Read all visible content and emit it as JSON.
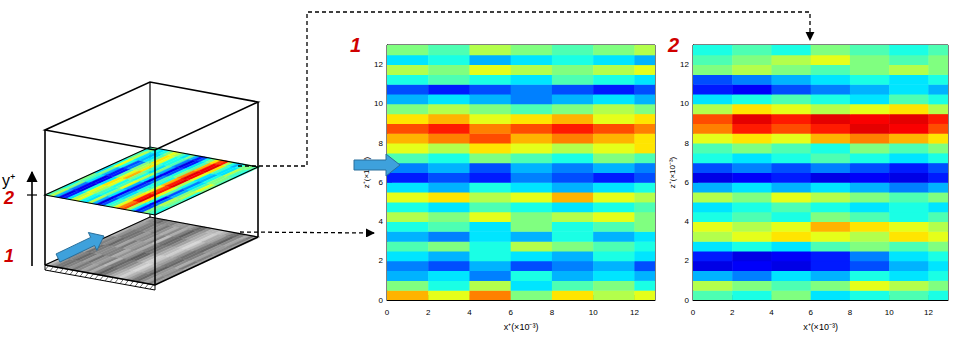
{
  "schematic": {
    "axis_label": "y⁺",
    "level_labels": [
      "1",
      "2"
    ]
  },
  "chart_data": [
    {
      "type": "heatmap",
      "panel_label": "1",
      "xlabel": "x⁺(×10⁻³)",
      "ylabel": "z⁺(×10⁻³)",
      "xlim": [
        0,
        13
      ],
      "ylim": [
        0,
        13
      ],
      "xticks": [
        0,
        2,
        4,
        6,
        8,
        10,
        12
      ],
      "yticks": [
        0,
        2,
        4,
        6,
        8,
        10,
        12
      ],
      "color_range": [
        0,
        1
      ],
      "x_edges": [
        0,
        2,
        4,
        6,
        8,
        10,
        12,
        13
      ],
      "y_edges": [
        0,
        0.5,
        1,
        1.5,
        2,
        2.5,
        3,
        3.5,
        4,
        4.5,
        5,
        5.5,
        6,
        6.5,
        7,
        7.5,
        8,
        8.5,
        9,
        9.5,
        10,
        10.5,
        11,
        11.5,
        12,
        12.5,
        13
      ],
      "cells": [
        [
          0.7,
          0.6,
          0.75,
          0.5,
          0.65,
          0.55,
          0.6
        ],
        [
          0.5,
          0.4,
          0.55,
          0.35,
          0.45,
          0.5,
          0.4
        ],
        [
          0.3,
          0.35,
          0.25,
          0.4,
          0.3,
          0.35,
          0.3
        ],
        [
          0.25,
          0.2,
          0.3,
          0.2,
          0.25,
          0.3,
          0.2
        ],
        [
          0.35,
          0.3,
          0.4,
          0.35,
          0.3,
          0.4,
          0.35
        ],
        [
          0.45,
          0.5,
          0.4,
          0.55,
          0.5,
          0.45,
          0.4
        ],
        [
          0.3,
          0.25,
          0.35,
          0.3,
          0.4,
          0.3,
          0.35
        ],
        [
          0.4,
          0.45,
          0.35,
          0.5,
          0.4,
          0.45,
          0.5
        ],
        [
          0.55,
          0.5,
          0.6,
          0.5,
          0.55,
          0.6,
          0.5
        ],
        [
          0.4,
          0.35,
          0.45,
          0.4,
          0.35,
          0.4,
          0.45
        ],
        [
          0.6,
          0.65,
          0.55,
          0.6,
          0.7,
          0.6,
          0.55
        ],
        [
          0.35,
          0.3,
          0.4,
          0.35,
          0.3,
          0.35,
          0.4
        ],
        [
          0.15,
          0.2,
          0.15,
          0.25,
          0.2,
          0.15,
          0.2
        ],
        [
          0.25,
          0.3,
          0.2,
          0.3,
          0.25,
          0.3,
          0.25
        ],
        [
          0.45,
          0.4,
          0.5,
          0.45,
          0.4,
          0.5,
          0.45
        ],
        [
          0.6,
          0.55,
          0.65,
          0.6,
          0.55,
          0.6,
          0.65
        ],
        [
          0.7,
          0.75,
          0.8,
          0.7,
          0.75,
          0.7,
          0.65
        ],
        [
          0.8,
          0.85,
          0.75,
          0.8,
          0.85,
          0.8,
          0.75
        ],
        [
          0.65,
          0.7,
          0.6,
          0.65,
          0.7,
          0.6,
          0.65
        ],
        [
          0.5,
          0.55,
          0.5,
          0.45,
          0.5,
          0.55,
          0.5
        ],
        [
          0.3,
          0.35,
          0.3,
          0.25,
          0.3,
          0.35,
          0.3
        ],
        [
          0.2,
          0.15,
          0.2,
          0.25,
          0.2,
          0.15,
          0.2
        ],
        [
          0.4,
          0.45,
          0.4,
          0.35,
          0.45,
          0.4,
          0.35
        ],
        [
          0.55,
          0.5,
          0.6,
          0.55,
          0.5,
          0.55,
          0.6
        ],
        [
          0.35,
          0.4,
          0.3,
          0.35,
          0.4,
          0.35,
          0.3
        ],
        [
          0.5,
          0.45,
          0.55,
          0.5,
          0.45,
          0.5,
          0.55
        ]
      ]
    },
    {
      "type": "heatmap",
      "panel_label": "2",
      "xlabel": "x⁺(×10⁻³)",
      "ylabel": "z⁺(×10⁻³)",
      "xlim": [
        0,
        13
      ],
      "ylim": [
        0,
        13
      ],
      "xticks": [
        0,
        2,
        4,
        6,
        8,
        10,
        12
      ],
      "yticks": [
        0,
        2,
        4,
        6,
        8,
        10,
        12
      ],
      "color_range": [
        0,
        1
      ],
      "x_edges": [
        0,
        2,
        4,
        6,
        8,
        10,
        12,
        13
      ],
      "y_edges": [
        0,
        0.5,
        1,
        1.5,
        2,
        2.5,
        3,
        3.5,
        4,
        4.5,
        5,
        5.5,
        6,
        6.5,
        7,
        7.5,
        8,
        8.5,
        9,
        9.5,
        10,
        10.5,
        11,
        11.5,
        12,
        12.5,
        13
      ],
      "cells": [
        [
          0.45,
          0.4,
          0.5,
          0.35,
          0.4,
          0.45,
          0.4
        ],
        [
          0.55,
          0.5,
          0.45,
          0.5,
          0.6,
          0.55,
          0.5
        ],
        [
          0.3,
          0.25,
          0.35,
          0.3,
          0.4,
          0.35,
          0.4
        ],
        [
          0.1,
          0.12,
          0.1,
          0.15,
          0.2,
          0.3,
          0.35
        ],
        [
          0.15,
          0.1,
          0.12,
          0.15,
          0.25,
          0.35,
          0.4
        ],
        [
          0.35,
          0.4,
          0.35,
          0.45,
          0.5,
          0.45,
          0.5
        ],
        [
          0.55,
          0.6,
          0.65,
          0.6,
          0.55,
          0.65,
          0.6
        ],
        [
          0.6,
          0.55,
          0.6,
          0.7,
          0.65,
          0.6,
          0.55
        ],
        [
          0.4,
          0.45,
          0.4,
          0.5,
          0.45,
          0.4,
          0.45
        ],
        [
          0.35,
          0.4,
          0.45,
          0.4,
          0.35,
          0.4,
          0.35
        ],
        [
          0.55,
          0.5,
          0.6,
          0.55,
          0.5,
          0.45,
          0.5
        ],
        [
          0.3,
          0.35,
          0.3,
          0.35,
          0.3,
          0.25,
          0.3
        ],
        [
          0.1,
          0.12,
          0.15,
          0.1,
          0.12,
          0.1,
          0.15
        ],
        [
          0.2,
          0.25,
          0.2,
          0.25,
          0.2,
          0.15,
          0.2
        ],
        [
          0.4,
          0.35,
          0.4,
          0.45,
          0.4,
          0.35,
          0.4
        ],
        [
          0.45,
          0.5,
          0.45,
          0.4,
          0.5,
          0.45,
          0.5
        ],
        [
          0.6,
          0.65,
          0.6,
          0.7,
          0.75,
          0.7,
          0.65
        ],
        [
          0.75,
          0.85,
          0.8,
          0.85,
          0.9,
          0.88,
          0.8
        ],
        [
          0.8,
          0.9,
          0.85,
          0.9,
          0.88,
          0.9,
          0.85
        ],
        [
          0.55,
          0.65,
          0.6,
          0.55,
          0.6,
          0.65,
          0.55
        ],
        [
          0.35,
          0.4,
          0.45,
          0.4,
          0.35,
          0.45,
          0.4
        ],
        [
          0.15,
          0.12,
          0.2,
          0.25,
          0.3,
          0.35,
          0.3
        ],
        [
          0.2,
          0.25,
          0.3,
          0.35,
          0.4,
          0.35,
          0.4
        ],
        [
          0.5,
          0.55,
          0.5,
          0.45,
          0.5,
          0.55,
          0.5
        ],
        [
          0.45,
          0.5,
          0.55,
          0.6,
          0.5,
          0.45,
          0.5
        ],
        [
          0.4,
          0.45,
          0.4,
          0.5,
          0.45,
          0.4,
          0.45
        ]
      ]
    }
  ]
}
